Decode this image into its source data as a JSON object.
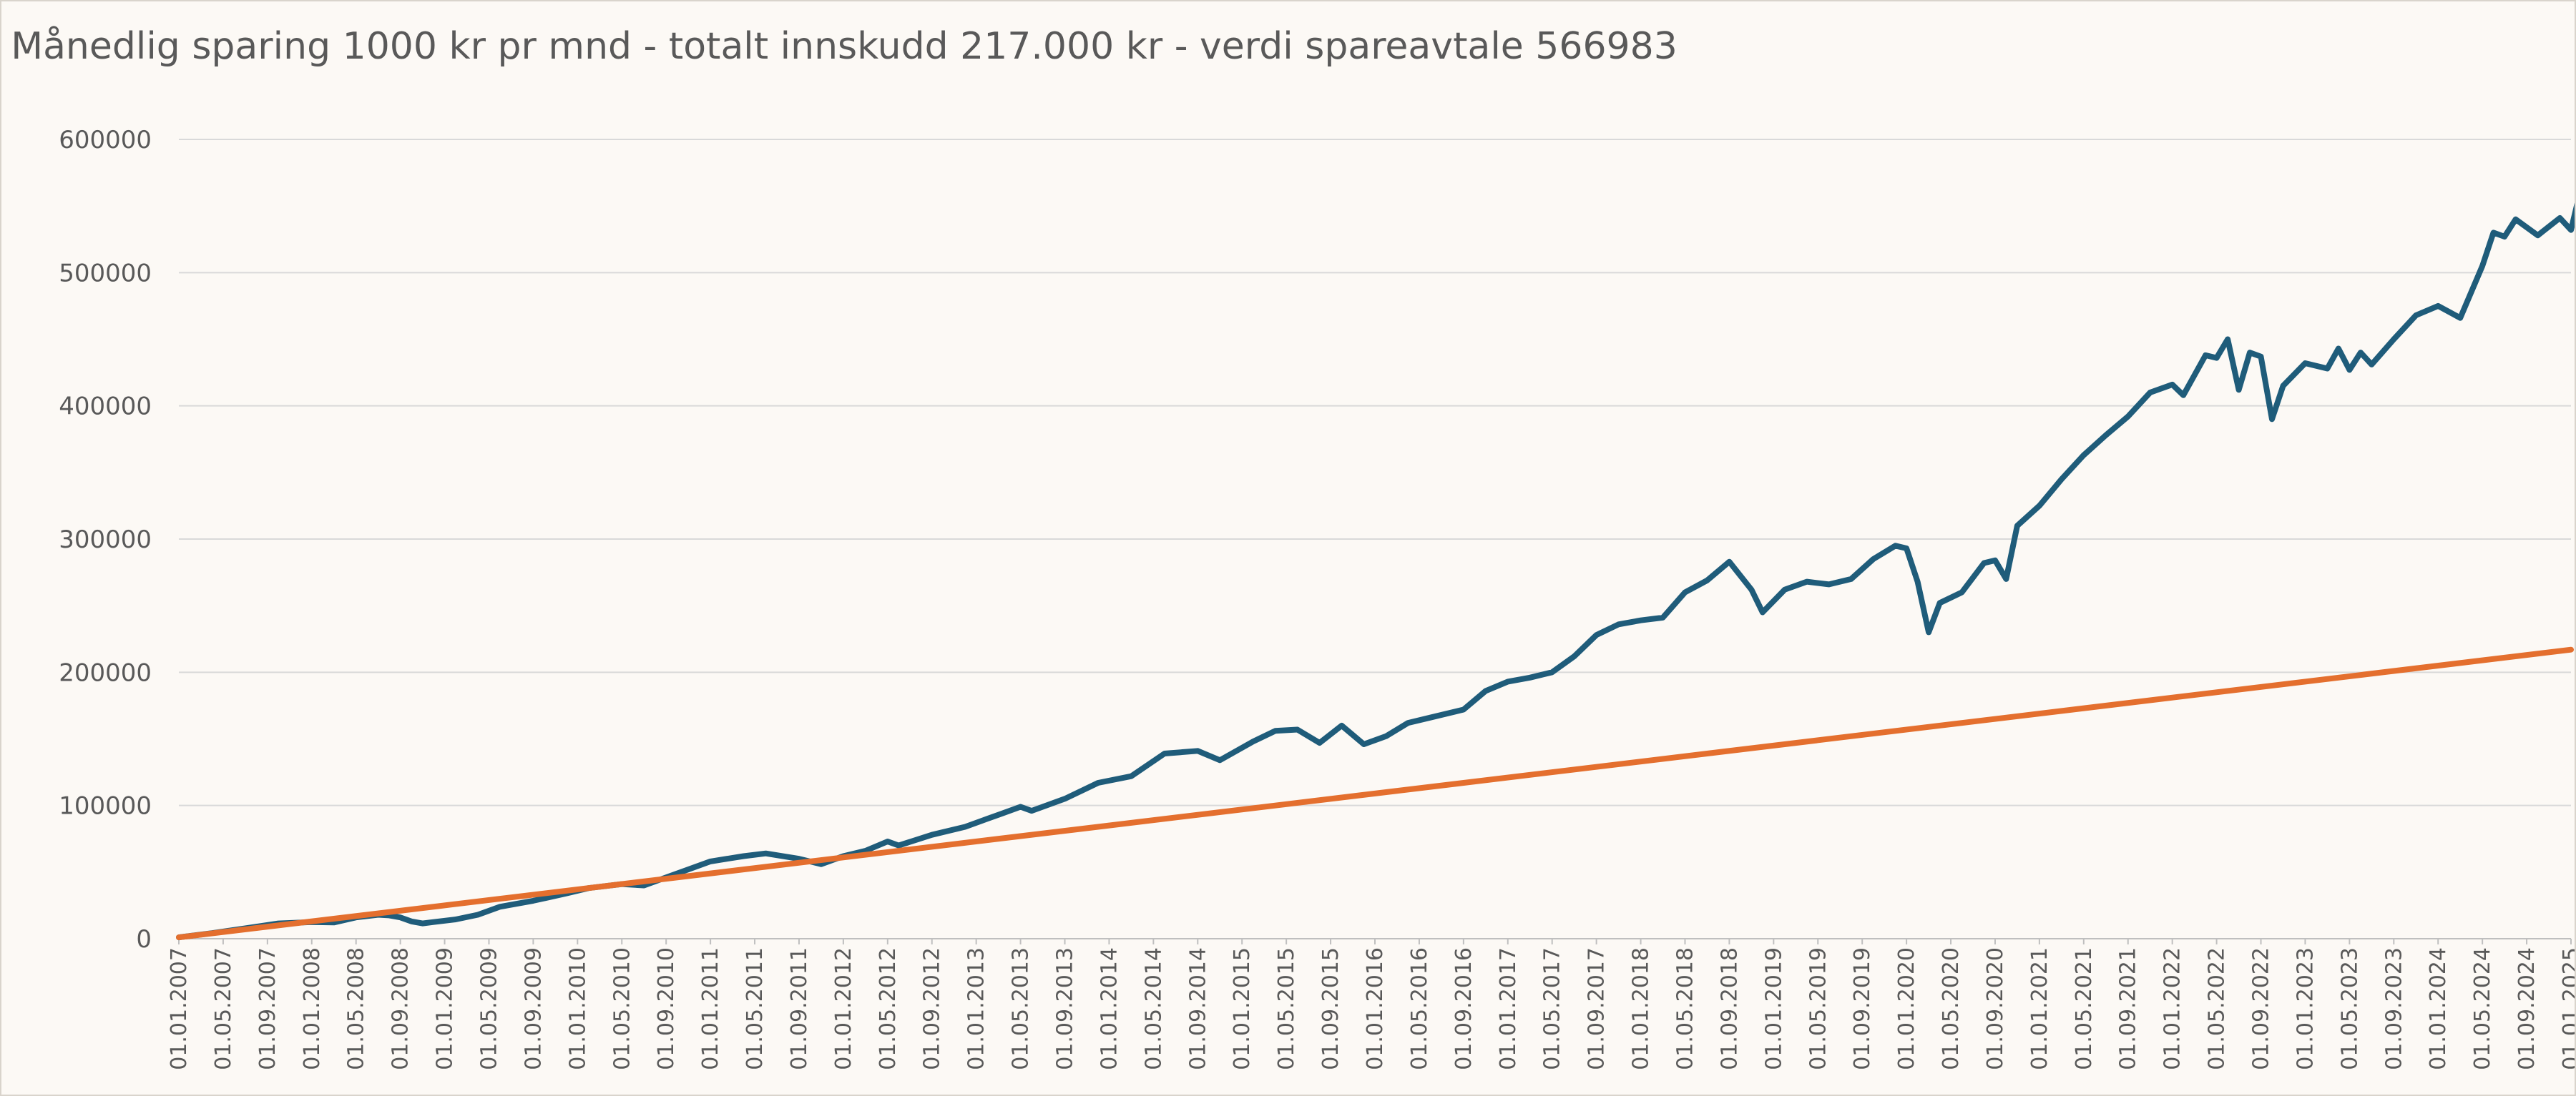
{
  "chart_data": {
    "type": "line",
    "title": "Månedlig sparing 1000 kr pr mnd - totalt innskudd 217.000 kr - verdi spareavtale 566983",
    "xlabel": "",
    "ylabel": "",
    "ylim": [
      0,
      600000
    ],
    "yticks": [
      0,
      100000,
      200000,
      300000,
      400000,
      500000,
      600000
    ],
    "ytick_labels": [
      "0",
      "100000",
      "200000",
      "300000",
      "400000",
      "500000",
      "600000"
    ],
    "x_tick_labels": [
      "01.01.2007",
      "01.05.2007",
      "01.09.2007",
      "01.01.2008",
      "01.05.2008",
      "01.09.2008",
      "01.01.2009",
      "01.05.2009",
      "01.09.2009",
      "01.01.2010",
      "01.05.2010",
      "01.09.2010",
      "01.01.2011",
      "01.05.2011",
      "01.09.2011",
      "01.01.2012",
      "01.05.2012",
      "01.09.2012",
      "01.01.2013",
      "01.05.2013",
      "01.09.2013",
      "01.01.2014",
      "01.05.2014",
      "01.09.2014",
      "01.01.2015",
      "01.05.2015",
      "01.09.2015",
      "01.01.2016",
      "01.05.2016",
      "01.09.2016",
      "01.01.2017",
      "01.05.2017",
      "01.09.2017",
      "01.01.2018",
      "01.05.2018",
      "01.09.2018",
      "01.01.2019",
      "01.05.2019",
      "01.09.2019",
      "01.01.2020",
      "01.05.2020",
      "01.09.2020",
      "01.01.2021",
      "01.05.2021",
      "01.09.2021",
      "01.01.2022",
      "01.05.2022",
      "01.09.2022",
      "01.01.2023",
      "01.05.2023",
      "01.09.2023",
      "01.01.2024",
      "01.05.2024",
      "01.09.2024",
      "01.01.2025"
    ],
    "x_start": "2007-01",
    "months_count": 217,
    "grid": true,
    "legend": "none",
    "series": [
      {
        "color": "#1f5c7a",
        "anchors": [
          [
            "2007-01",
            1000
          ],
          [
            "2007-04",
            4200
          ],
          [
            "2007-07",
            7800
          ],
          [
            "2007-10",
            11500
          ],
          [
            "2008-01",
            12500
          ],
          [
            "2008-03",
            12200
          ],
          [
            "2008-05",
            16000
          ],
          [
            "2008-07",
            18000
          ],
          [
            "2008-08",
            17500
          ],
          [
            "2008-09",
            16000
          ],
          [
            "2008-10",
            13000
          ],
          [
            "2008-11",
            11500
          ],
          [
            "2008-12",
            12500
          ],
          [
            "2009-02",
            14500
          ],
          [
            "2009-04",
            18000
          ],
          [
            "2009-06",
            24000
          ],
          [
            "2009-09",
            28500
          ],
          [
            "2009-12",
            34000
          ],
          [
            "2010-02",
            38000
          ],
          [
            "2010-05",
            41000
          ],
          [
            "2010-07",
            40000
          ],
          [
            "2010-09",
            46000
          ],
          [
            "2010-11",
            52000
          ],
          [
            "2011-01",
            58000
          ],
          [
            "2011-04",
            62000
          ],
          [
            "2011-06",
            64000
          ],
          [
            "2011-09",
            60000
          ],
          [
            "2011-11",
            56000
          ],
          [
            "2012-01",
            62000
          ],
          [
            "2012-03",
            66000
          ],
          [
            "2012-05",
            73000
          ],
          [
            "2012-06",
            70000
          ],
          [
            "2012-09",
            78000
          ],
          [
            "2012-12",
            84000
          ],
          [
            "2013-02",
            90000
          ],
          [
            "2013-05",
            99000
          ],
          [
            "2013-06",
            96000
          ],
          [
            "2013-09",
            105000
          ],
          [
            "2013-12",
            117000
          ],
          [
            "2014-03",
            122000
          ],
          [
            "2014-06",
            139000
          ],
          [
            "2014-09",
            141000
          ],
          [
            "2014-11",
            134000
          ],
          [
            "2015-02",
            148000
          ],
          [
            "2015-04",
            156000
          ],
          [
            "2015-06",
            157000
          ],
          [
            "2015-08",
            147000
          ],
          [
            "2015-10",
            160000
          ],
          [
            "2015-12",
            146000
          ],
          [
            "2016-02",
            152000
          ],
          [
            "2016-04",
            162000
          ],
          [
            "2016-06",
            166000
          ],
          [
            "2016-09",
            172000
          ],
          [
            "2016-11",
            186000
          ],
          [
            "2017-01",
            193000
          ],
          [
            "2017-03",
            196000
          ],
          [
            "2017-05",
            200000
          ],
          [
            "2017-07",
            212000
          ],
          [
            "2017-09",
            228000
          ],
          [
            "2017-11",
            236000
          ],
          [
            "2018-01",
            239000
          ],
          [
            "2018-03",
            241000
          ],
          [
            "2018-05",
            260000
          ],
          [
            "2018-07",
            269000
          ],
          [
            "2018-09",
            283000
          ],
          [
            "2018-11",
            262000
          ],
          [
            "2018-12",
            245000
          ],
          [
            "2019-02",
            262000
          ],
          [
            "2019-04",
            268000
          ],
          [
            "2019-06",
            266000
          ],
          [
            "2019-08",
            270000
          ],
          [
            "2019-10",
            285000
          ],
          [
            "2019-12",
            295000
          ],
          [
            "2020-01",
            293000
          ],
          [
            "2020-02",
            268000
          ],
          [
            "2020-03",
            230000
          ],
          [
            "2020-04",
            252000
          ],
          [
            "2020-06",
            260000
          ],
          [
            "2020-08",
            282000
          ],
          [
            "2020-09",
            284000
          ],
          [
            "2020-10",
            270000
          ],
          [
            "2020-11",
            310000
          ],
          [
            "2021-01",
            325000
          ],
          [
            "2021-03",
            345000
          ],
          [
            "2021-05",
            363000
          ],
          [
            "2021-07",
            378000
          ],
          [
            "2021-09",
            392000
          ],
          [
            "2021-11",
            410000
          ],
          [
            "2022-01",
            416000
          ],
          [
            "2022-02",
            408000
          ],
          [
            "2022-04",
            438000
          ],
          [
            "2022-05",
            436000
          ],
          [
            "2022-06",
            450000
          ],
          [
            "2022-07",
            412000
          ],
          [
            "2022-08",
            440000
          ],
          [
            "2022-09",
            437000
          ],
          [
            "2022-10",
            390000
          ],
          [
            "2022-11",
            415000
          ],
          [
            "2023-01",
            432000
          ],
          [
            "2023-03",
            428000
          ],
          [
            "2023-04",
            443000
          ],
          [
            "2023-05",
            427000
          ],
          [
            "2023-06",
            440000
          ],
          [
            "2023-07",
            431000
          ],
          [
            "2023-09",
            450000
          ],
          [
            "2023-11",
            468000
          ],
          [
            "2024-01",
            475000
          ],
          [
            "2024-03",
            466000
          ],
          [
            "2024-05",
            505000
          ],
          [
            "2024-06",
            530000
          ],
          [
            "2024-07",
            527000
          ],
          [
            "2024-08",
            540000
          ],
          [
            "2024-10",
            528000
          ],
          [
            "2024-12",
            541000
          ],
          [
            "2025-01",
            532000
          ],
          [
            "2025-02",
            566983
          ]
        ]
      },
      {
        "color": "#e46f2e",
        "anchors": [
          [
            "2007-01",
            1000
          ],
          [
            "2025-01",
            217000
          ]
        ]
      }
    ]
  }
}
